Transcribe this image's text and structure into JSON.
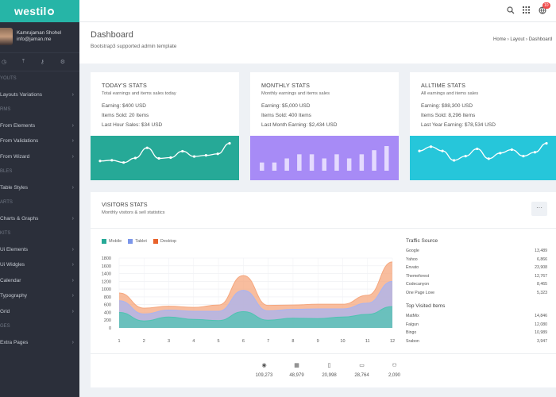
{
  "brand": {
    "name": "westil"
  },
  "user": {
    "name": "Kamrujaman Shohel",
    "email": "info@jaman.me"
  },
  "sidebar": {
    "icons": [
      "clock-icon",
      "upload-icon",
      "key-icon",
      "gear-icon"
    ],
    "groups": [
      {
        "section": "YOUTS",
        "items": [
          {
            "label": "Layouts Variations"
          }
        ]
      },
      {
        "section": "RMS",
        "items": [
          {
            "label": "From Elements"
          },
          {
            "label": "From Validations"
          },
          {
            "label": "From Wizard"
          }
        ]
      },
      {
        "section": "BLES",
        "items": [
          {
            "label": "Table Styles"
          }
        ]
      },
      {
        "section": "ARTS",
        "items": [
          {
            "label": "Charts & Graphs"
          }
        ]
      },
      {
        "section": "KITS",
        "items": [
          {
            "label": "Ui Elements"
          },
          {
            "label": "Ui Widgles"
          },
          {
            "label": "Calendar"
          },
          {
            "label": "Typography"
          },
          {
            "label": "Grid"
          }
        ]
      },
      {
        "section": "GES",
        "items": [
          {
            "label": "Extra Pages"
          }
        ]
      }
    ]
  },
  "topbar": {
    "notification_count": "10"
  },
  "header": {
    "title": "Dashboard",
    "subtitle": "Bootstrap3 supported admin template",
    "breadcrumb": [
      "Home",
      "Layout",
      "Dashboard"
    ]
  },
  "stats": [
    {
      "title": "TODAY'S STATS",
      "subtitle": "Total earnings and items sales today",
      "lines": [
        "Earning: $400 USD",
        "Items Sold: 20 Items",
        "Last Hour Sales: $34 USD"
      ],
      "color": "#26a997",
      "chart": "line",
      "values": [
        3,
        3.2,
        2.6,
        3.8,
        6.5,
        3.7,
        3.9,
        5.6,
        4.2,
        4.5,
        4.9,
        7.7
      ]
    },
    {
      "title": "MONTHLY STATS",
      "subtitle": "Monthly earnings and items sales",
      "lines": [
        "Earning: $5,000 USD",
        "Items Sold: 400 Items",
        "Last Month Earning: $2,434 USD"
      ],
      "color": "#a78bf6",
      "chart": "bar",
      "values": [
        2,
        2,
        3,
        4,
        4,
        3,
        4,
        3,
        4,
        5,
        6
      ]
    },
    {
      "title": "ALLTIME STATS",
      "subtitle": "All earnings and items sales",
      "lines": [
        "Earning: $98,300 USD",
        "Items Sold: 8,296 Items",
        "Last Year Earning: $78,534 USD"
      ],
      "color": "#26c6da",
      "chart": "line",
      "values": [
        5,
        6,
        5,
        2.8,
        3.8,
        5.5,
        3.2,
        4.5,
        5.3,
        3.8,
        4.7,
        6.8
      ]
    }
  ],
  "visitors": {
    "title": "VISITORS STATS",
    "subtitle": "Monthly visitors & sell statistics",
    "more_label": "···",
    "traffic_title": "Traffic Source",
    "traffic": [
      {
        "name": "Google",
        "value": "13,489"
      },
      {
        "name": "Yahoo",
        "value": "6,866"
      },
      {
        "name": "Envato",
        "value": "23,908"
      },
      {
        "name": "Themeforest",
        "value": "12,767"
      },
      {
        "name": "Codecanyon",
        "value": "8,465"
      },
      {
        "name": "One Page Love",
        "value": "5,323"
      }
    ],
    "top_title": "Top Visited Items",
    "top_items": [
      {
        "name": "MatMix",
        "value": "14,846"
      },
      {
        "name": "Falgun",
        "value": "12,080"
      },
      {
        "name": "Bingo",
        "value": "10,989"
      },
      {
        "name": "Srabon",
        "value": "3,947"
      }
    ],
    "bottom": [
      {
        "icon": "eye-icon",
        "value": "109,273"
      },
      {
        "icon": "calendar-icon",
        "value": "48,979"
      },
      {
        "icon": "mobile-icon",
        "value": "20,998"
      },
      {
        "icon": "laptop-icon",
        "value": "28,764"
      },
      {
        "icon": "users-icon",
        "value": "2,090"
      }
    ]
  },
  "chart_data": {
    "type": "area",
    "x": [
      1,
      2,
      3,
      4,
      5,
      6,
      7,
      8,
      9,
      10,
      11,
      12
    ],
    "ylim": [
      0,
      1800
    ],
    "yticks": [
      "1800",
      "1600",
      "1400",
      "1200",
      "1000",
      "800",
      "600",
      "400",
      "200",
      "0"
    ],
    "series": [
      {
        "name": "Mobile",
        "color": "#4fc3b1",
        "values": [
          400,
          180,
          280,
          220,
          190,
          420,
          200,
          250,
          240,
          280,
          350,
          550
        ]
      },
      {
        "name": "Tablet",
        "color": "#a8b4f2",
        "values": [
          300,
          180,
          180,
          210,
          240,
          550,
          240,
          230,
          250,
          210,
          290,
          650
        ]
      },
      {
        "name": "Desktop",
        "color": "#f5a77e",
        "values": [
          200,
          150,
          100,
          100,
          160,
          380,
          140,
          110,
          120,
          120,
          200,
          500
        ]
      }
    ]
  }
}
